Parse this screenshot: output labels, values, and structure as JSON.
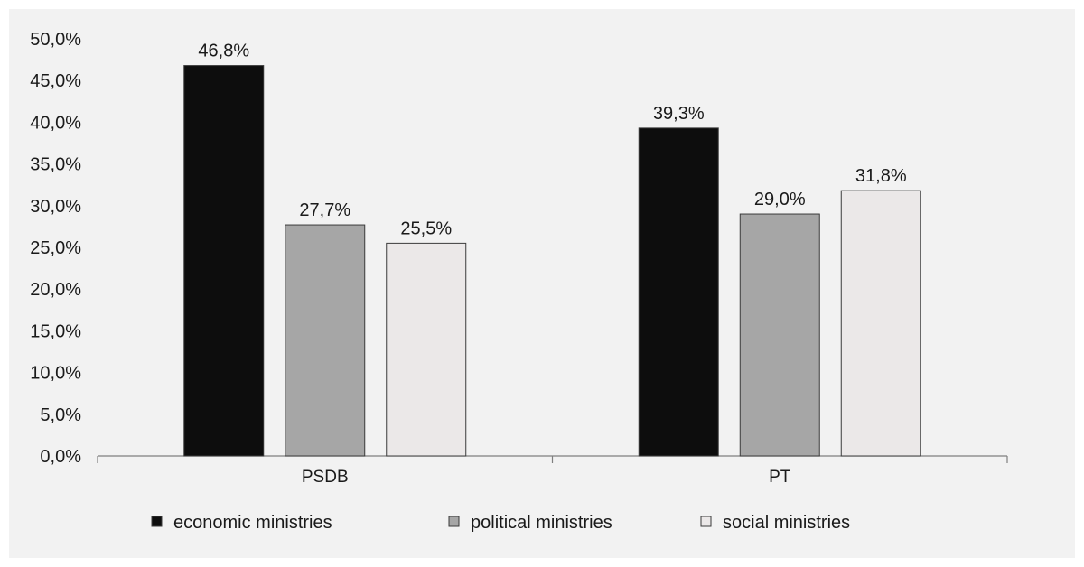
{
  "chart_data": {
    "type": "bar",
    "categories": [
      "PSDB",
      "PT"
    ],
    "series": [
      {
        "name": "economic ministries",
        "values": [
          46.8,
          39.3
        ],
        "labels": [
          "46,8%",
          "39,3%"
        ],
        "color": "#0d0d0d"
      },
      {
        "name": "political ministries",
        "values": [
          27.7,
          29.0
        ],
        "labels": [
          "27,7%",
          "29,0%"
        ],
        "color": "#a6a6a6"
      },
      {
        "name": "social ministries",
        "values": [
          25.5,
          31.8
        ],
        "labels": [
          "25,5%",
          "31,8%"
        ],
        "color": "#ebe8e8"
      }
    ],
    "ylim": [
      0,
      50
    ],
    "y_ticks": [
      0,
      5,
      10,
      15,
      20,
      25,
      30,
      35,
      40,
      45,
      50
    ],
    "y_tick_labels": [
      "0,0%",
      "5,0%",
      "10,0%",
      "15,0%",
      "20,0%",
      "25,0%",
      "30,0%",
      "35,0%",
      "40,0%",
      "45,0%",
      "50,0%"
    ],
    "grid": false,
    "legend_position": "bottom",
    "background": "#f2f2f2"
  }
}
